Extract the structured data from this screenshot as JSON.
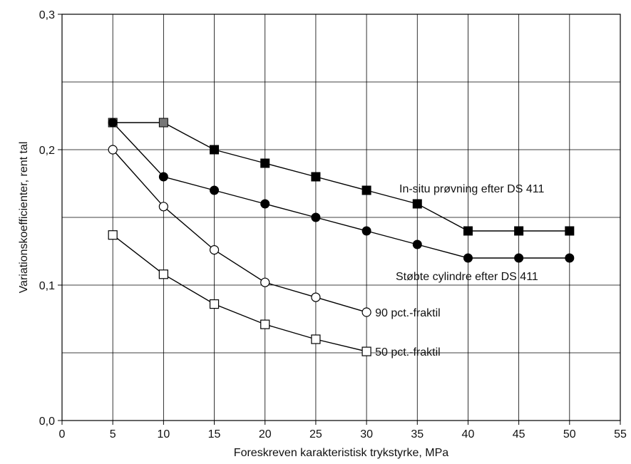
{
  "chart_data": {
    "type": "line",
    "title": "",
    "xlabel": "Foreskreven karakteristisk trykstyrke, MPa",
    "ylabel": "Variationskoefficienter, rent tal",
    "xlim": [
      0,
      55
    ],
    "ylim": [
      0.0,
      0.3
    ],
    "x_ticks": [
      0,
      5,
      10,
      15,
      20,
      25,
      30,
      35,
      40,
      45,
      50,
      55
    ],
    "x_tick_labels": [
      "0",
      "5",
      "10",
      "15",
      "20",
      "25",
      "30",
      "35",
      "40",
      "45",
      "50",
      "55"
    ],
    "y_ticks": [
      0.0,
      0.1,
      0.2,
      0.3
    ],
    "y_tick_labels": [
      "0,0",
      "0,1",
      "0,2",
      "0,3"
    ],
    "grid": true,
    "series": [
      {
        "name": "In-situ prøvning efter DS 411",
        "marker": "filled-square",
        "x": [
          5,
          10,
          15,
          20,
          25,
          30,
          35,
          40,
          45,
          50
        ],
        "y": [
          0.22,
          0.22,
          0.2,
          0.19,
          0.18,
          0.17,
          0.16,
          0.14,
          0.14,
          0.14
        ]
      },
      {
        "name": "Støbte cylindre efter DS 411",
        "marker": "filled-circle",
        "x": [
          5,
          10,
          15,
          20,
          25,
          30,
          35,
          40,
          45,
          50
        ],
        "y": [
          0.22,
          0.18,
          0.17,
          0.16,
          0.15,
          0.14,
          0.13,
          0.12,
          0.12,
          0.12
        ]
      },
      {
        "name": "90 pct.-fraktil",
        "marker": "open-circle",
        "x": [
          5,
          10,
          15,
          20,
          25,
          30
        ],
        "y": [
          0.2,
          0.158,
          0.126,
          0.102,
          0.091,
          0.08
        ]
      },
      {
        "name": "50 pct.-fraktil",
        "marker": "open-square",
        "x": [
          5,
          10,
          15,
          20,
          25,
          30
        ],
        "y": [
          0.137,
          0.108,
          0.086,
          0.071,
          0.06,
          0.051
        ]
      }
    ],
    "colors": {
      "line": "#000000",
      "grey_marker": "#777777",
      "grid": "#000000"
    }
  }
}
